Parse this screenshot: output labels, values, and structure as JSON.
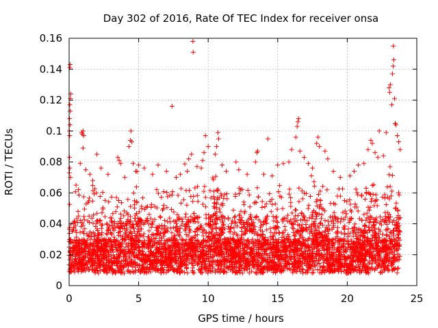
{
  "chart_data": {
    "type": "scatter",
    "title": "Day 302 of 2016, Rate Of TEC Index for receiver onsa",
    "xlabel": "GPS time / hours",
    "ylabel": "ROTI / TECUs",
    "xlim": [
      0,
      25
    ],
    "ylim": [
      0,
      0.16
    ],
    "x_ticks": [
      "0",
      "5",
      "10",
      "15",
      "20",
      "25"
    ],
    "y_ticks": [
      "0",
      "0.02",
      "0.04",
      "0.06",
      "0.08",
      "0.1",
      "0.12",
      "0.14",
      "0.16"
    ],
    "x_tick_values": [
      0,
      5,
      10,
      15,
      20,
      25
    ],
    "y_tick_values": [
      0,
      0.02,
      0.04,
      0.06,
      0.08,
      0.1,
      0.12,
      0.14,
      0.16
    ],
    "grid": true,
    "marker": "+",
    "color": "#ff0000",
    "series": [
      {
        "name": "ROTI",
        "points": [
          [
            0.05,
            0.141
          ],
          [
            0.07,
            0.143
          ],
          [
            0.12,
            0.124
          ],
          [
            0.1,
            0.121
          ],
          [
            0.05,
            0.117
          ],
          [
            0.08,
            0.113
          ],
          [
            0.03,
            0.108
          ],
          [
            0.06,
            0.104
          ],
          [
            0.02,
            0.1
          ],
          [
            0.04,
            0.097
          ],
          [
            0.03,
            0.083
          ],
          [
            0.05,
            0.076
          ],
          [
            0.02,
            0.073
          ],
          [
            0.1,
            0.07
          ],
          [
            0.5,
            0.065
          ],
          [
            0.9,
            0.099
          ],
          [
            0.95,
            0.098
          ],
          [
            1.0,
            0.1
          ],
          [
            1.05,
            0.097
          ],
          [
            1.0,
            0.089
          ],
          [
            0.8,
            0.079
          ],
          [
            1.2,
            0.075
          ],
          [
            1.5,
            0.072
          ],
          [
            1.7,
            0.068
          ],
          [
            2.0,
            0.085
          ],
          [
            2.3,
            0.076
          ],
          [
            2.8,
            0.072
          ],
          [
            3.5,
            0.083
          ],
          [
            3.6,
            0.081
          ],
          [
            3.7,
            0.079
          ],
          [
            4.0,
            0.07
          ],
          [
            4.3,
            0.09
          ],
          [
            4.4,
            0.094
          ],
          [
            4.5,
            0.093
          ],
          [
            4.45,
            0.1
          ],
          [
            4.6,
            0.079
          ],
          [
            4.8,
            0.074
          ],
          [
            5.0,
            0.078
          ],
          [
            5.4,
            0.076
          ],
          [
            6.0,
            0.072
          ],
          [
            6.4,
            0.078
          ],
          [
            7.0,
            0.074
          ],
          [
            7.4,
            0.116
          ],
          [
            7.7,
            0.07
          ],
          [
            8.0,
            0.072
          ],
          [
            8.5,
            0.074
          ],
          [
            8.6,
            0.082
          ],
          [
            8.8,
            0.085
          ],
          [
            8.9,
            0.158
          ],
          [
            8.92,
            0.151
          ],
          [
            9.2,
            0.077
          ],
          [
            9.5,
            0.076
          ],
          [
            9.6,
            0.081
          ],
          [
            9.7,
            0.086
          ],
          [
            9.8,
            0.097
          ],
          [
            10.0,
            0.09
          ],
          [
            10.5,
            0.085
          ],
          [
            10.6,
            0.09
          ],
          [
            10.7,
            0.099
          ],
          [
            10.75,
            0.095
          ],
          [
            11.0,
            0.078
          ],
          [
            11.3,
            0.074
          ],
          [
            12.0,
            0.08
          ],
          [
            12.2,
            0.075
          ],
          [
            12.8,
            0.072
          ],
          [
            13.4,
            0.08
          ],
          [
            13.5,
            0.086
          ],
          [
            13.55,
            0.087
          ],
          [
            14.0,
            0.072
          ],
          [
            14.3,
            0.095
          ],
          [
            14.6,
            0.071
          ],
          [
            15.0,
            0.078
          ],
          [
            15.4,
            0.079
          ],
          [
            15.8,
            0.08
          ],
          [
            16.0,
            0.088
          ],
          [
            16.3,
            0.096
          ],
          [
            16.4,
            0.103
          ],
          [
            16.45,
            0.106
          ],
          [
            16.5,
            0.108
          ],
          [
            16.6,
            0.087
          ],
          [
            16.9,
            0.083
          ],
          [
            17.2,
            0.079
          ],
          [
            17.5,
            0.076
          ],
          [
            17.8,
            0.092
          ],
          [
            17.9,
            0.096
          ],
          [
            18.0,
            0.09
          ],
          [
            18.4,
            0.087
          ],
          [
            18.6,
            0.082
          ],
          [
            19.0,
            0.074
          ],
          [
            19.5,
            0.07
          ],
          [
            20.2,
            0.071
          ],
          [
            20.5,
            0.074
          ],
          [
            20.8,
            0.078
          ],
          [
            21.2,
            0.079
          ],
          [
            21.5,
            0.088
          ],
          [
            21.7,
            0.094
          ],
          [
            21.8,
            0.092
          ],
          [
            22.0,
            0.086
          ],
          [
            22.2,
            0.083
          ],
          [
            22.3,
            0.1
          ],
          [
            22.6,
            0.084
          ],
          [
            22.8,
            0.099
          ],
          [
            23.0,
            0.128
          ],
          [
            23.05,
            0.125
          ],
          [
            23.1,
            0.13
          ],
          [
            23.2,
            0.117
          ],
          [
            23.25,
            0.137
          ],
          [
            23.3,
            0.142
          ],
          [
            23.35,
            0.146
          ],
          [
            23.32,
            0.155
          ],
          [
            23.4,
            0.121
          ],
          [
            23.45,
            0.105
          ],
          [
            23.5,
            0.104
          ],
          [
            23.6,
            0.097
          ],
          [
            23.7,
            0.093
          ],
          [
            23.8,
            0.088
          ]
        ]
      }
    ]
  }
}
